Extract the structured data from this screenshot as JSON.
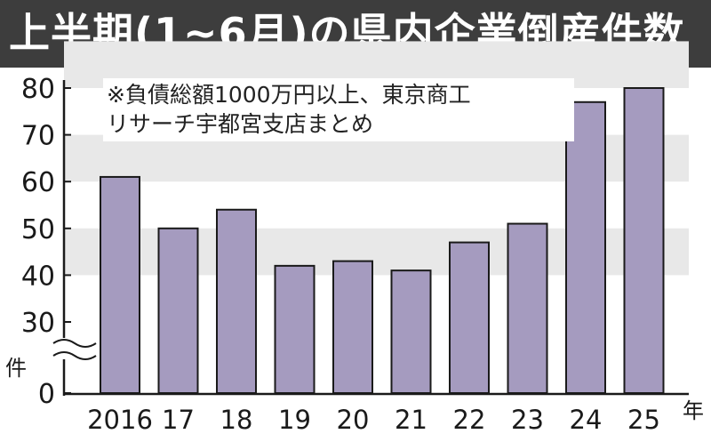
{
  "title": "上半期(1~6月)の県内企業倒産件数",
  "note": {
    "line1": "※負債総額1000万円以上、東京商工",
    "line2": "リサーチ宇都宮支店まとめ"
  },
  "colors": {
    "title_bg": "#3d3d3d",
    "band": "#e8e8e8",
    "bar_fill": "#a59bbf",
    "bar_stroke": "#1a1a1a"
  },
  "chart_data": {
    "type": "bar",
    "categories": [
      "2016",
      "17",
      "18",
      "19",
      "20",
      "21",
      "22",
      "23",
      "24",
      "25"
    ],
    "values": [
      61,
      50,
      54,
      42,
      43,
      41,
      47,
      51,
      77,
      80
    ],
    "ylabel_unit": "件",
    "xlabel_unit": "年",
    "yticks": [
      0,
      30,
      40,
      50,
      60,
      70,
      80
    ],
    "ylim": [
      0,
      80
    ],
    "axis_break": "between 0 and 30",
    "grid": "alternating horizontal bands"
  }
}
